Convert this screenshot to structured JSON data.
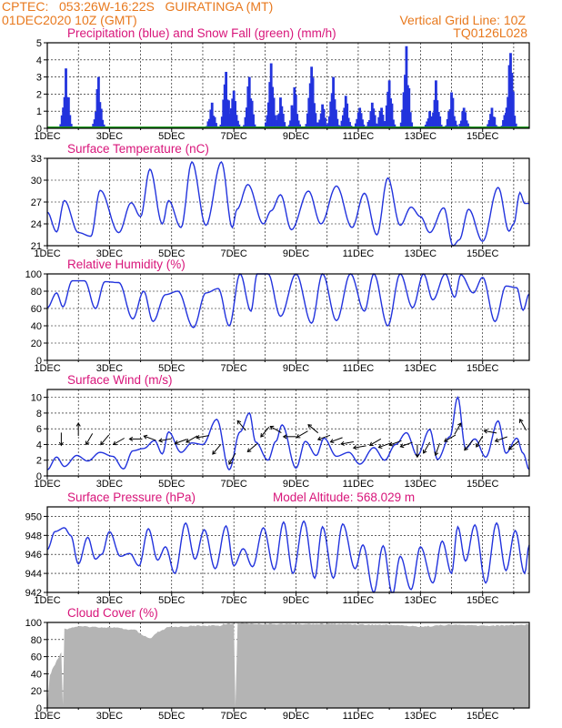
{
  "header": {
    "line1": "CPTEC:   053:26W-16:22S   GUIRATINGA (MT)",
    "line2": "01DEC2020 10Z (GMT)",
    "grid_note": "Vertical Grid Line: 10Z",
    "code": "TQ0126L028"
  },
  "x_tick_labels": [
    "1DEC",
    "3DEC",
    "5DEC",
    "7DEC",
    "9DEC",
    "11DEC",
    "13DEC",
    "15DEC"
  ],
  "colors": {
    "series": "#2233dd",
    "snow": "#1f9a1f",
    "title": "#d8157a",
    "header": "#e8791e",
    "cloud": "#b4b4b4"
  },
  "chart_data": [
    {
      "type": "bar",
      "title": "Precipitation (blue) and Snow Fall (green) (mm/h)",
      "ylim": [
        0,
        5
      ],
      "yticks": [
        "0",
        "1",
        "2",
        "3",
        "4",
        "5"
      ],
      "x_unit": "days since 01DEC2020 10Z",
      "xlim": [
        0,
        15
      ],
      "events": [
        [
          0.6,
          3.5
        ],
        [
          1.65,
          3.0
        ],
        [
          5.3,
          1.5
        ],
        [
          5.75,
          3.3
        ],
        [
          6.0,
          2.2
        ],
        [
          6.5,
          3.0
        ],
        [
          7.2,
          3.8
        ],
        [
          7.5,
          1.8
        ],
        [
          7.95,
          2.4
        ],
        [
          8.5,
          3.6
        ],
        [
          8.85,
          1.4
        ],
        [
          9.2,
          3.0
        ],
        [
          9.6,
          1.9
        ],
        [
          10.05,
          1.2
        ],
        [
          10.45,
          1.5
        ],
        [
          10.75,
          1.2
        ],
        [
          11.0,
          2.8
        ],
        [
          11.55,
          4.8
        ],
        [
          12.3,
          1.0
        ],
        [
          12.5,
          2.8
        ],
        [
          13.0,
          2.1
        ],
        [
          13.4,
          1.2
        ],
        [
          14.3,
          1.2
        ],
        [
          14.75,
          0.9
        ],
        [
          14.9,
          4.4
        ]
      ],
      "snow_values": "0"
    },
    {
      "type": "line",
      "title": "Surface Temperature (nC)",
      "ylim": [
        21,
        33
      ],
      "yticks": [
        "21",
        "24",
        "27",
        "30",
        "33"
      ],
      "x_unit": "days since 01DEC2020 10Z",
      "keypoints": [
        [
          0,
          25.6
        ],
        [
          0.3,
          22.9
        ],
        [
          0.55,
          27.2
        ],
        [
          1.0,
          22.8
        ],
        [
          1.4,
          22.3
        ],
        [
          1.7,
          28.6
        ],
        [
          2.3,
          22.8
        ],
        [
          2.7,
          26.9
        ],
        [
          3.0,
          25.0
        ],
        [
          3.3,
          31.5
        ],
        [
          3.7,
          24.0
        ],
        [
          3.9,
          27.2
        ],
        [
          4.3,
          23.5
        ],
        [
          4.65,
          32.5
        ],
        [
          5.1,
          23.8
        ],
        [
          5.6,
          32.5
        ],
        [
          5.95,
          23.5
        ],
        [
          6.1,
          26.0
        ],
        [
          6.45,
          29.4
        ],
        [
          6.95,
          24.0
        ],
        [
          7.2,
          25.8
        ],
        [
          7.5,
          28.0
        ],
        [
          7.85,
          23.2
        ],
        [
          8.4,
          28.5
        ],
        [
          8.8,
          24.0
        ],
        [
          9.3,
          29.2
        ],
        [
          9.8,
          23.5
        ],
        [
          10.2,
          28.2
        ],
        [
          10.6,
          22.5
        ],
        [
          10.95,
          30.3
        ],
        [
          11.35,
          23.8
        ],
        [
          11.7,
          26.3
        ],
        [
          12.0,
          25.0
        ],
        [
          12.3,
          22.8
        ],
        [
          12.75,
          26.2
        ],
        [
          13.05,
          21.0
        ],
        [
          13.25,
          21.8
        ],
        [
          13.55,
          26.0
        ],
        [
          14.0,
          21.6
        ],
        [
          14.5,
          29.0
        ],
        [
          14.85,
          23.0
        ],
        [
          15.0,
          24.0
        ],
        [
          15.2,
          28.3
        ],
        [
          15.35,
          26.8
        ],
        [
          15.5,
          26.8
        ]
      ]
    },
    {
      "type": "line",
      "title": "Relative Humidity (%)",
      "ylim": [
        0,
        100
      ],
      "yticks": [
        "0",
        "20",
        "40",
        "60",
        "80",
        "100"
      ],
      "x_unit": "days since 01DEC2020 10Z",
      "keypoints": [
        [
          0,
          61
        ],
        [
          0.3,
          78
        ],
        [
          0.5,
          62
        ],
        [
          0.8,
          92
        ],
        [
          1.2,
          92
        ],
        [
          1.55,
          60
        ],
        [
          1.85,
          91
        ],
        [
          2.3,
          90
        ],
        [
          2.75,
          48
        ],
        [
          3.1,
          80
        ],
        [
          3.4,
          45
        ],
        [
          3.8,
          76
        ],
        [
          4.2,
          80
        ],
        [
          4.7,
          38
        ],
        [
          5.1,
          78
        ],
        [
          5.5,
          83
        ],
        [
          5.85,
          40
        ],
        [
          6.2,
          100
        ],
        [
          6.55,
          57
        ],
        [
          6.75,
          100
        ],
        [
          7.1,
          100
        ],
        [
          7.5,
          51
        ],
        [
          8.0,
          100
        ],
        [
          8.5,
          43
        ],
        [
          8.85,
          100
        ],
        [
          9.3,
          46
        ],
        [
          9.75,
          100
        ],
        [
          10.2,
          57
        ],
        [
          10.5,
          100
        ],
        [
          10.95,
          40
        ],
        [
          11.35,
          100
        ],
        [
          11.75,
          61
        ],
        [
          12.1,
          100
        ],
        [
          12.4,
          70
        ],
        [
          12.8,
          100
        ],
        [
          13.1,
          73
        ],
        [
          13.3,
          99
        ],
        [
          13.7,
          78
        ],
        [
          14.0,
          96
        ],
        [
          14.4,
          45
        ],
        [
          14.75,
          86
        ],
        [
          15.1,
          84
        ],
        [
          15.3,
          58
        ],
        [
          15.5,
          77
        ]
      ]
    },
    {
      "type": "line",
      "title": "Surface Wind (m/s)",
      "ylim": [
        0,
        11
      ],
      "yticks": [
        "0",
        "2",
        "4",
        "6",
        "8",
        "10"
      ],
      "x_unit": "days since 01DEC2020 10Z",
      "keypoints": [
        [
          0,
          0.8
        ],
        [
          0.3,
          2.4
        ],
        [
          0.55,
          1.2
        ],
        [
          0.95,
          2.6
        ],
        [
          1.3,
          1.9
        ],
        [
          1.7,
          3.0
        ],
        [
          2.1,
          2.5
        ],
        [
          2.45,
          0.9
        ],
        [
          2.75,
          3.2
        ],
        [
          3.1,
          3.5
        ],
        [
          3.45,
          4.5
        ],
        [
          3.7,
          2.8
        ],
        [
          3.9,
          5.6
        ],
        [
          4.3,
          3.0
        ],
        [
          4.65,
          4.2
        ],
        [
          5.0,
          4.0
        ],
        [
          5.45,
          7.2
        ],
        [
          5.85,
          0.8
        ],
        [
          6.2,
          5.6
        ],
        [
          6.5,
          8.0
        ],
        [
          6.7,
          4.3
        ],
        [
          7.1,
          2.0
        ],
        [
          7.35,
          4.4
        ],
        [
          7.55,
          6.5
        ],
        [
          8.0,
          1.0
        ],
        [
          8.3,
          4.4
        ],
        [
          8.65,
          2.6
        ],
        [
          8.9,
          4.8
        ],
        [
          9.3,
          2.5
        ],
        [
          9.7,
          3.0
        ],
        [
          10.05,
          1.5
        ],
        [
          10.5,
          3.6
        ],
        [
          10.85,
          2.0
        ],
        [
          11.2,
          4.0
        ],
        [
          11.55,
          5.5
        ],
        [
          11.9,
          2.6
        ],
        [
          12.3,
          5.9
        ],
        [
          12.55,
          2.1
        ],
        [
          12.95,
          5.0
        ],
        [
          13.2,
          10.0
        ],
        [
          13.45,
          3.5
        ],
        [
          13.75,
          4.7
        ],
        [
          14.1,
          2.4
        ],
        [
          14.5,
          7.0
        ],
        [
          14.75,
          2.9
        ],
        [
          15.1,
          4.8
        ],
        [
          15.3,
          2.9
        ],
        [
          15.5,
          0.8
        ]
      ],
      "arrows": [
        [
          0.45,
          4.7,
          270
        ],
        [
          1.0,
          5.9,
          90
        ],
        [
          1.35,
          4.7,
          240
        ],
        [
          1.85,
          4.6,
          230
        ],
        [
          2.3,
          4.4,
          210
        ],
        [
          2.85,
          4.7,
          180
        ],
        [
          3.3,
          4.8,
          160
        ],
        [
          3.8,
          4.6,
          190
        ],
        [
          4.3,
          4.4,
          200
        ],
        [
          4.65,
          4.7,
          210
        ],
        [
          5.0,
          5.0,
          190
        ],
        [
          5.45,
          3.4,
          230
        ],
        [
          5.95,
          2.2,
          240
        ],
        [
          6.25,
          6.4,
          130
        ],
        [
          6.6,
          3.6,
          220
        ],
        [
          7.0,
          5.6,
          230
        ],
        [
          7.35,
          5.9,
          150
        ],
        [
          7.8,
          5.0,
          180
        ],
        [
          8.2,
          5.3,
          210
        ],
        [
          8.55,
          6.0,
          140
        ],
        [
          8.9,
          4.9,
          200
        ],
        [
          9.3,
          4.6,
          200
        ],
        [
          9.65,
          4.2,
          190
        ],
        [
          10.05,
          3.7,
          190
        ],
        [
          10.55,
          4.3,
          210
        ],
        [
          10.85,
          3.9,
          200
        ],
        [
          11.2,
          4.2,
          200
        ],
        [
          11.55,
          4.0,
          200
        ],
        [
          11.9,
          3.2,
          270
        ],
        [
          12.2,
          3.6,
          240
        ],
        [
          12.55,
          3.4,
          250
        ],
        [
          12.95,
          4.8,
          210
        ],
        [
          13.2,
          6.0,
          60
        ],
        [
          13.55,
          3.9,
          230
        ],
        [
          13.9,
          4.4,
          240
        ],
        [
          14.25,
          5.6,
          170
        ],
        [
          14.6,
          4.7,
          200
        ],
        [
          15.0,
          3.9,
          220
        ],
        [
          15.3,
          6.5,
          120
        ]
      ]
    },
    {
      "type": "line",
      "title": "Surface Pressure (hPa)",
      "annotation": "Model Altitude: 568.029 m",
      "ylim": [
        942,
        951
      ],
      "yticks": [
        "942",
        "944",
        "946",
        "948",
        "950"
      ],
      "x_unit": "days since 01DEC2020 10Z",
      "keypoints": [
        [
          0,
          946.5
        ],
        [
          0.25,
          948.4
        ],
        [
          0.55,
          948.8
        ],
        [
          0.75,
          948.0
        ],
        [
          1.0,
          945.0
        ],
        [
          1.3,
          947.8
        ],
        [
          1.55,
          945.5
        ],
        [
          1.75,
          946.0
        ],
        [
          2.0,
          948.4
        ],
        [
          2.35,
          945.8
        ],
        [
          2.65,
          946.1
        ],
        [
          2.95,
          944.8
        ],
        [
          3.25,
          948.7
        ],
        [
          3.55,
          945.4
        ],
        [
          3.8,
          946.8
        ],
        [
          4.1,
          944.0
        ],
        [
          4.45,
          949.3
        ],
        [
          4.75,
          945.5
        ],
        [
          5.05,
          948.6
        ],
        [
          5.4,
          944.5
        ],
        [
          5.75,
          949.0
        ],
        [
          6.0,
          944.8
        ],
        [
          6.3,
          946.6
        ],
        [
          6.6,
          944.7
        ],
        [
          6.95,
          948.8
        ],
        [
          7.3,
          944.4
        ],
        [
          7.6,
          949.4
        ],
        [
          7.9,
          944.0
        ],
        [
          8.25,
          949.5
        ],
        [
          8.6,
          943.5
        ],
        [
          8.85,
          948.9
        ],
        [
          9.2,
          943.5
        ],
        [
          9.5,
          949.2
        ],
        [
          9.9,
          944.5
        ],
        [
          10.15,
          947.0
        ],
        [
          10.5,
          942.0
        ],
        [
          10.8,
          946.9
        ],
        [
          11.1,
          941.8
        ],
        [
          11.35,
          945.8
        ],
        [
          11.7,
          942.3
        ],
        [
          12.0,
          946.8
        ],
        [
          12.4,
          943.0
        ],
        [
          12.7,
          947.4
        ],
        [
          13.0,
          944.0
        ],
        [
          13.2,
          948.9
        ],
        [
          13.45,
          945.3
        ],
        [
          13.75,
          949.1
        ],
        [
          14.1,
          943.0
        ],
        [
          14.45,
          949.3
        ],
        [
          14.75,
          944.3
        ],
        [
          15.05,
          948.5
        ],
        [
          15.35,
          944.0
        ],
        [
          15.5,
          947.0
        ]
      ]
    },
    {
      "type": "area",
      "title": "Cloud Cover (%)",
      "ylim": [
        0,
        100
      ],
      "yticks": [
        "0",
        "20",
        "40",
        "60",
        "80",
        "100"
      ],
      "x_unit": "days since 01DEC2020 10Z",
      "keypoints": [
        [
          0,
          3
        ],
        [
          0.08,
          38
        ],
        [
          0.2,
          48
        ],
        [
          0.35,
          58
        ],
        [
          0.45,
          65
        ],
        [
          0.5,
          4
        ],
        [
          0.55,
          93
        ],
        [
          1.0,
          96
        ],
        [
          2.0,
          95
        ],
        [
          2.8,
          92
        ],
        [
          3.1,
          85
        ],
        [
          3.3,
          82
        ],
        [
          3.6,
          90
        ],
        [
          3.9,
          95
        ],
        [
          4.3,
          96
        ],
        [
          5.0,
          97
        ],
        [
          5.6,
          97
        ],
        [
          5.65,
          99
        ],
        [
          6.0,
          99
        ],
        [
          6.05,
          3
        ],
        [
          6.12,
          100
        ],
        [
          7.0,
          99
        ],
        [
          9.0,
          99
        ],
        [
          11.0,
          98
        ],
        [
          12.0,
          96
        ],
        [
          13.0,
          98
        ],
        [
          14.0,
          97
        ],
        [
          15.5,
          98
        ]
      ]
    }
  ]
}
